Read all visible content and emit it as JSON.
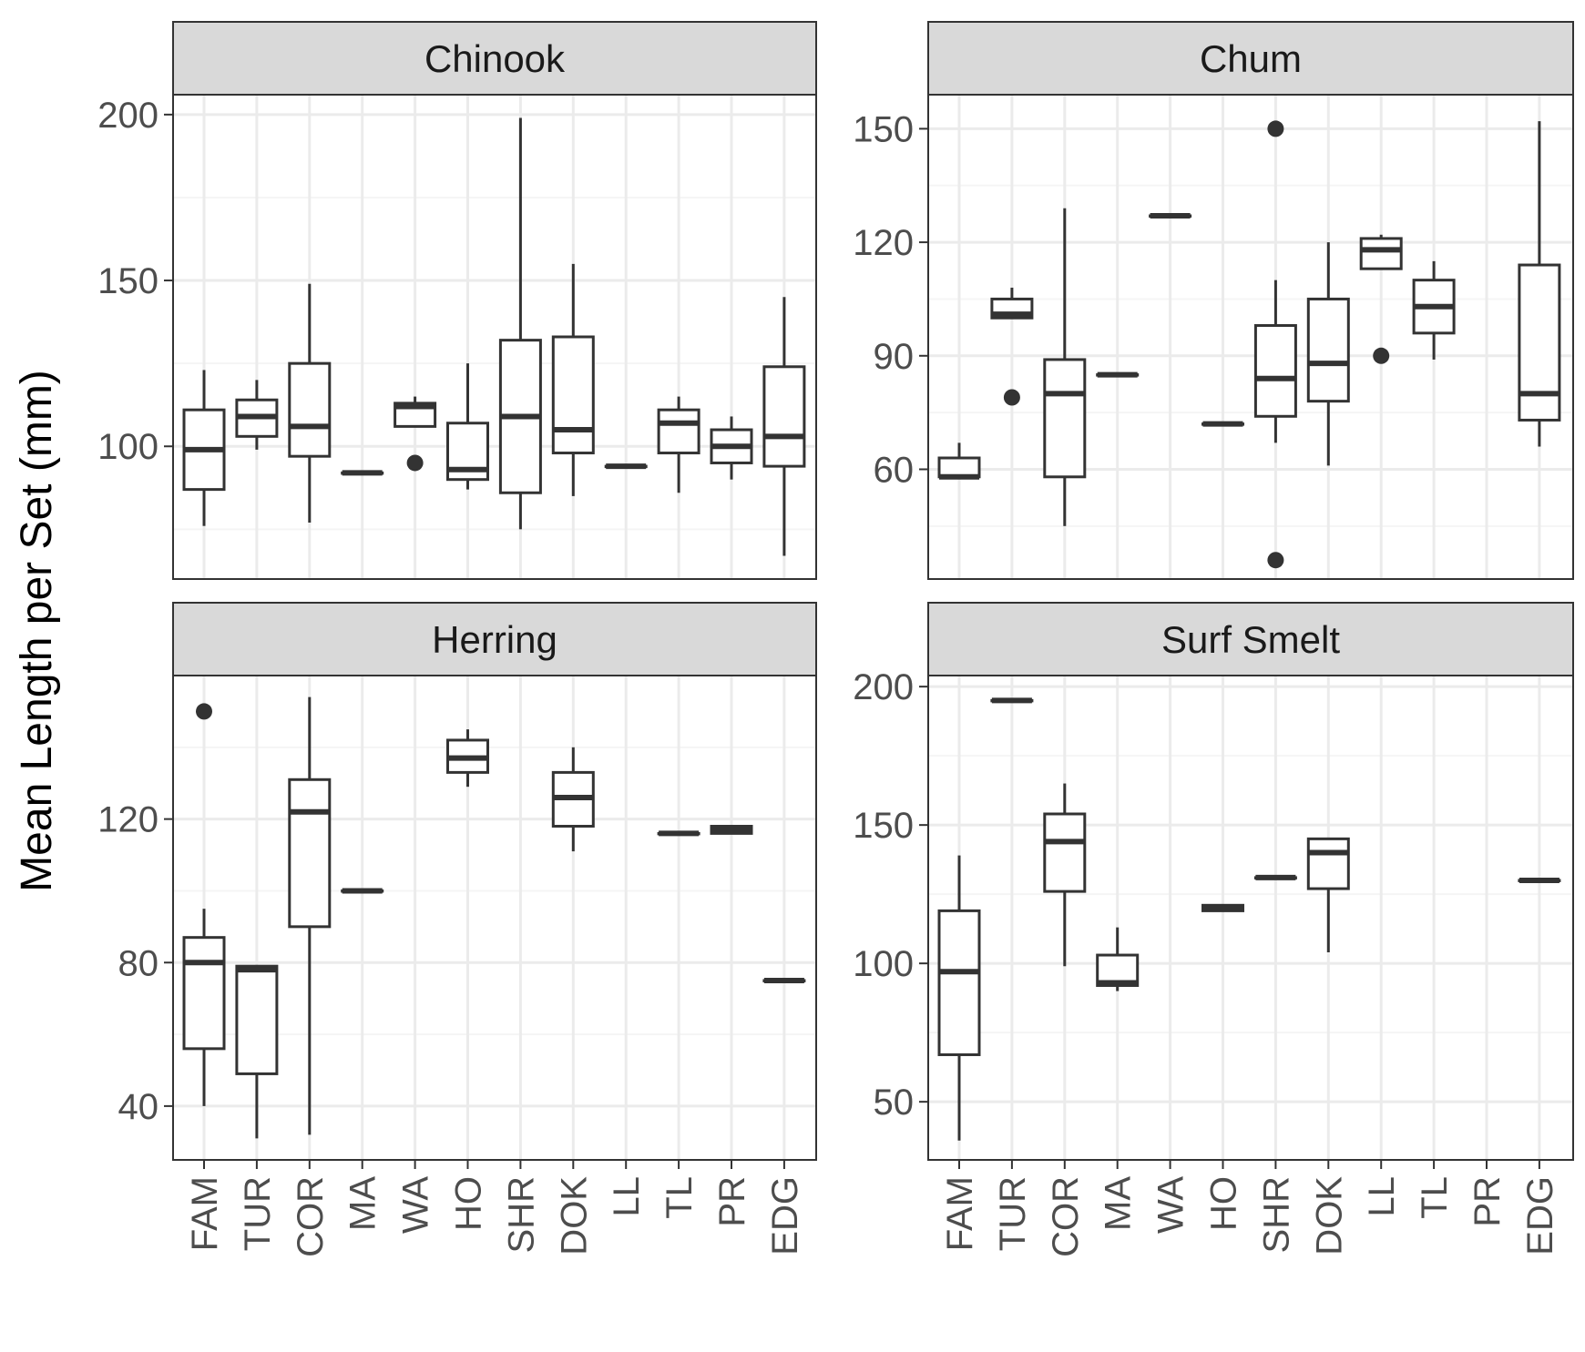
{
  "ylabel": "Mean Length per Set (mm)",
  "categories": [
    "FAM",
    "TUR",
    "COR",
    "MA",
    "WA",
    "HO",
    "SHR",
    "DOK",
    "LL",
    "TL",
    "PR",
    "EDG"
  ],
  "colors": {
    "strip_fill": "#D9D9D9",
    "strip_border": "#333333",
    "panel_border": "#333333",
    "grid_major": "#EBEBEB",
    "grid_minor": "#F5F5F5",
    "box_stroke": "#333333",
    "outlier": "#333333",
    "tick_label": "#4D4D4D",
    "axis_title": "#000000"
  },
  "chart_data": [
    {
      "type": "boxplot",
      "title": "Chinook",
      "ylim": [
        60,
        206
      ],
      "yticks": [
        100,
        150,
        200
      ],
      "grid": true,
      "boxes": [
        {
          "cat": "FAM",
          "low": 76,
          "q1": 87,
          "med": 99,
          "q3": 111,
          "high": 123
        },
        {
          "cat": "TUR",
          "low": 99,
          "q1": 103,
          "med": 109,
          "q3": 114,
          "high": 120
        },
        {
          "cat": "COR",
          "low": 77,
          "q1": 97,
          "med": 106,
          "q3": 125,
          "high": 149
        },
        {
          "cat": "MA",
          "low": 92,
          "q1": 92,
          "med": 92,
          "q3": 92,
          "high": 92
        },
        {
          "cat": "WA",
          "low": 106,
          "q1": 106,
          "med": 112,
          "q3": 113,
          "high": 115
        },
        {
          "cat": "HO",
          "low": 87,
          "q1": 90,
          "med": 93,
          "q3": 107,
          "high": 125
        },
        {
          "cat": "SHR",
          "low": 75,
          "q1": 86,
          "med": 109,
          "q3": 132,
          "high": 199
        },
        {
          "cat": "DOK",
          "low": 85,
          "q1": 98,
          "med": 105,
          "q3": 133,
          "high": 155
        },
        {
          "cat": "LL",
          "low": 94,
          "q1": 94,
          "med": 94,
          "q3": 94,
          "high": 94
        },
        {
          "cat": "TL",
          "low": 86,
          "q1": 98,
          "med": 107,
          "q3": 111,
          "high": 115
        },
        {
          "cat": "PR",
          "low": 90,
          "q1": 95,
          "med": 100,
          "q3": 105,
          "high": 109
        },
        {
          "cat": "EDG",
          "low": 67,
          "q1": 94,
          "med": 103,
          "q3": 124,
          "high": 145
        }
      ],
      "outliers": [
        {
          "cat": "WA",
          "y": 95
        }
      ]
    },
    {
      "type": "boxplot",
      "title": "Chum",
      "ylim": [
        31,
        159
      ],
      "yticks": [
        60,
        90,
        120,
        150
      ],
      "grid": true,
      "boxes": [
        {
          "cat": "FAM",
          "low": 58,
          "q1": 58,
          "med": 58,
          "q3": 63,
          "high": 67
        },
        {
          "cat": "TUR",
          "low": 100,
          "q1": 100,
          "med": 101,
          "q3": 105,
          "high": 108
        },
        {
          "cat": "COR",
          "low": 45,
          "q1": 58,
          "med": 80,
          "q3": 89,
          "high": 129
        },
        {
          "cat": "MA",
          "low": 85,
          "q1": 85,
          "med": 85,
          "q3": 85,
          "high": 85
        },
        {
          "cat": "WA",
          "low": 127,
          "q1": 127,
          "med": 127,
          "q3": 127,
          "high": 127
        },
        {
          "cat": "HO",
          "low": 72,
          "q1": 72,
          "med": 72,
          "q3": 72,
          "high": 72
        },
        {
          "cat": "SHR",
          "low": 67,
          "q1": 74,
          "med": 84,
          "q3": 98,
          "high": 110
        },
        {
          "cat": "DOK",
          "low": 61,
          "q1": 78,
          "med": 88,
          "q3": 105,
          "high": 120
        },
        {
          "cat": "LL",
          "low": 113,
          "q1": 113,
          "med": 118,
          "q3": 121,
          "high": 122
        },
        {
          "cat": "TL",
          "low": 89,
          "q1": 96,
          "med": 103,
          "q3": 110,
          "high": 115
        },
        {
          "cat": "EDG",
          "low": 66,
          "q1": 73,
          "med": 80,
          "q3": 114,
          "high": 152
        }
      ],
      "outliers": [
        {
          "cat": "TUR",
          "y": 79
        },
        {
          "cat": "SHR",
          "y": 150
        },
        {
          "cat": "SHR",
          "y": 36
        },
        {
          "cat": "LL",
          "y": 90
        }
      ]
    },
    {
      "type": "boxplot",
      "title": "Herring",
      "ylim": [
        25,
        160
      ],
      "yticks": [
        40,
        80,
        120
      ],
      "grid": true,
      "boxes": [
        {
          "cat": "FAM",
          "low": 40,
          "q1": 56,
          "med": 80,
          "q3": 87,
          "high": 95
        },
        {
          "cat": "TUR",
          "low": 31,
          "q1": 49,
          "med": 78,
          "q3": 79,
          "high": 79
        },
        {
          "cat": "COR",
          "low": 32,
          "q1": 90,
          "med": 122,
          "q3": 131,
          "high": 154
        },
        {
          "cat": "MA",
          "low": 100,
          "q1": 100,
          "med": 100,
          "q3": 100,
          "high": 100
        },
        {
          "cat": "HO",
          "low": 129,
          "q1": 133,
          "med": 137,
          "q3": 142,
          "high": 145
        },
        {
          "cat": "DOK",
          "low": 111,
          "q1": 118,
          "med": 126,
          "q3": 133,
          "high": 140
        },
        {
          "cat": "TL",
          "low": 116,
          "q1": 116,
          "med": 116,
          "q3": 116,
          "high": 116
        },
        {
          "cat": "PR",
          "low": 116,
          "q1": 116,
          "med": 117,
          "q3": 118,
          "high": 118
        },
        {
          "cat": "EDG",
          "low": 75,
          "q1": 75,
          "med": 75,
          "q3": 75,
          "high": 75
        }
      ],
      "outliers": [
        {
          "cat": "FAM",
          "y": 150
        }
      ]
    },
    {
      "type": "boxplot",
      "title": "Surf Smelt",
      "ylim": [
        29,
        204
      ],
      "yticks": [
        50,
        100,
        150,
        200
      ],
      "grid": true,
      "boxes": [
        {
          "cat": "FAM",
          "low": 36,
          "q1": 67,
          "med": 97,
          "q3": 119,
          "high": 139
        },
        {
          "cat": "TUR",
          "low": 195,
          "q1": 195,
          "med": 195,
          "q3": 195,
          "high": 195
        },
        {
          "cat": "COR",
          "low": 99,
          "q1": 126,
          "med": 144,
          "q3": 154,
          "high": 165
        },
        {
          "cat": "MA",
          "low": 90,
          "q1": 92,
          "med": 93,
          "q3": 103,
          "high": 113
        },
        {
          "cat": "HO",
          "low": 119,
          "q1": 119,
          "med": 120,
          "q3": 121,
          "high": 121
        },
        {
          "cat": "SHR",
          "low": 131,
          "q1": 131,
          "med": 131,
          "q3": 131,
          "high": 131
        },
        {
          "cat": "DOK",
          "low": 104,
          "q1": 127,
          "med": 140,
          "q3": 145,
          "high": 145
        },
        {
          "cat": "EDG",
          "low": 130,
          "q1": 130,
          "med": 130,
          "q3": 130,
          "high": 130
        }
      ],
      "outliers": []
    }
  ]
}
